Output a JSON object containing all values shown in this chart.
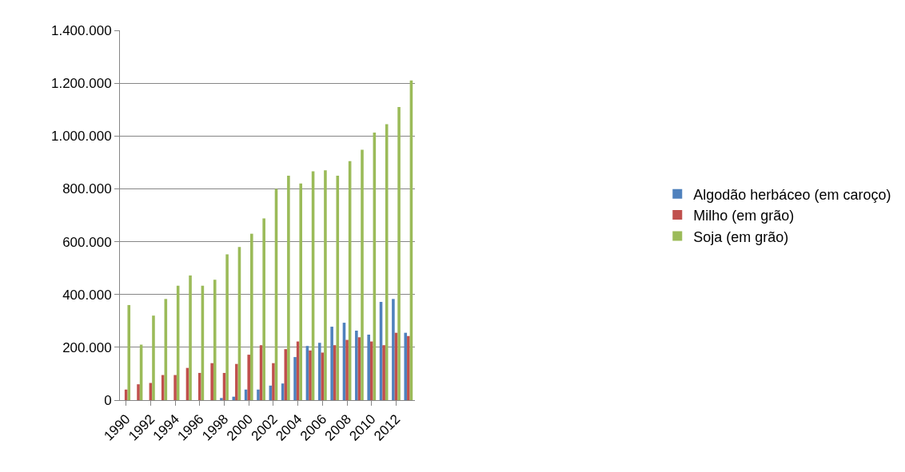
{
  "chart_data": {
    "type": "bar",
    "categories": [
      "1990",
      null,
      "1992",
      null,
      "1994",
      null,
      "1996",
      null,
      "1998",
      null,
      "2000",
      null,
      "2002",
      null,
      "2004",
      null,
      "2006",
      null,
      "2008",
      null,
      "2010",
      null,
      "2012",
      null
    ],
    "series": [
      {
        "name": "Algodão herbáceo (em caroço)",
        "color": "#4f81bd",
        "values": [
          0,
          null,
          null,
          0,
          0,
          null,
          0,
          null,
          8000,
          13000,
          40000,
          40000,
          55000,
          63000,
          163000,
          205000,
          217000,
          278000,
          293000,
          263000,
          248000,
          372000,
          383000,
          255000
        ]
      },
      {
        "name": "Milho (em grão)",
        "color": "#c0504d",
        "values": [
          40000,
          60000,
          65000,
          95000,
          95000,
          122000,
          103000,
          140000,
          103000,
          137000,
          172000,
          208000,
          140000,
          193000,
          222000,
          188000,
          180000,
          208000,
          228000,
          238000,
          222000,
          208000,
          255000,
          243000
        ]
      },
      {
        "name": "Soja (em grão)",
        "color": "#9bbb59",
        "values": [
          360000,
          210000,
          320000,
          383000,
          433000,
          472000,
          433000,
          456000,
          552000,
          580000,
          630000,
          688000,
          800000,
          850000,
          820000,
          866000,
          870000,
          850000,
          905000,
          948000,
          1013000,
          1045000,
          1110000,
          1210000
        ]
      }
    ],
    "ylim": [
      0,
      1400000
    ],
    "yticks": [
      0,
      {
        "value": 200000,
        "label": "200.000"
      },
      {
        "value": 400000,
        "label": "400.000"
      },
      {
        "value": 600000,
        "label": "600.000"
      },
      {
        "value": 800000,
        "label": "800.000"
      },
      {
        "value": 1000000,
        "label": "1.000.000"
      },
      {
        "value": 1200000,
        "label": "1.200.000"
      },
      {
        "value": 1400000,
        "label": "1.400.000"
      }
    ],
    "grid": "y",
    "legend": "right"
  }
}
